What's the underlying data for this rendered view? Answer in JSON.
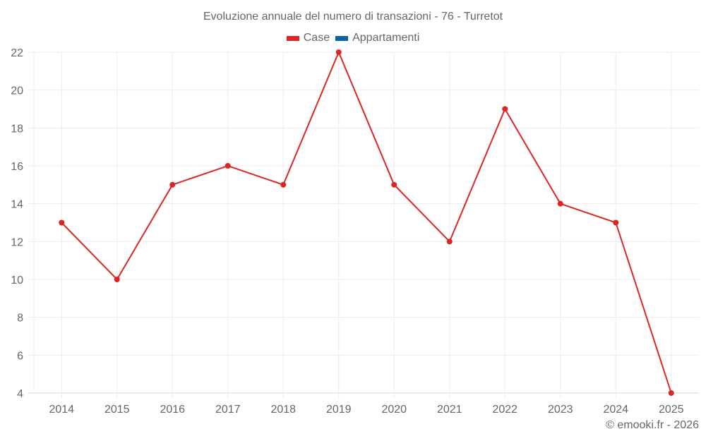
{
  "header": {
    "title": "Evoluzione annuale del numero di transazioni - 76 - Turretot"
  },
  "legend": {
    "items": [
      {
        "label": "Case",
        "color": "#dc2626"
      },
      {
        "label": "Appartamenti",
        "color": "#0b62a4"
      }
    ]
  },
  "footer": {
    "credit": "© emooki.fr - 2026"
  },
  "chart_data": {
    "type": "line",
    "title": "Evoluzione annuale del numero di transazioni - 76 - Turretot",
    "xlabel": "",
    "ylabel": "",
    "categories": [
      "2014",
      "2015",
      "2016",
      "2017",
      "2018",
      "2019",
      "2020",
      "2021",
      "2022",
      "2023",
      "2024",
      "2025"
    ],
    "series": [
      {
        "name": "Case",
        "color": "#dc2626",
        "values": [
          13,
          10,
          15,
          16,
          15,
          22,
          15,
          12,
          19,
          14,
          13,
          4
        ]
      },
      {
        "name": "Appartamenti",
        "color": "#0b62a4",
        "values": []
      }
    ],
    "ylim": [
      4,
      22
    ],
    "yticks": [
      4,
      6,
      8,
      10,
      12,
      14,
      16,
      18,
      20,
      22
    ],
    "grid": true,
    "legend_position": "top"
  }
}
